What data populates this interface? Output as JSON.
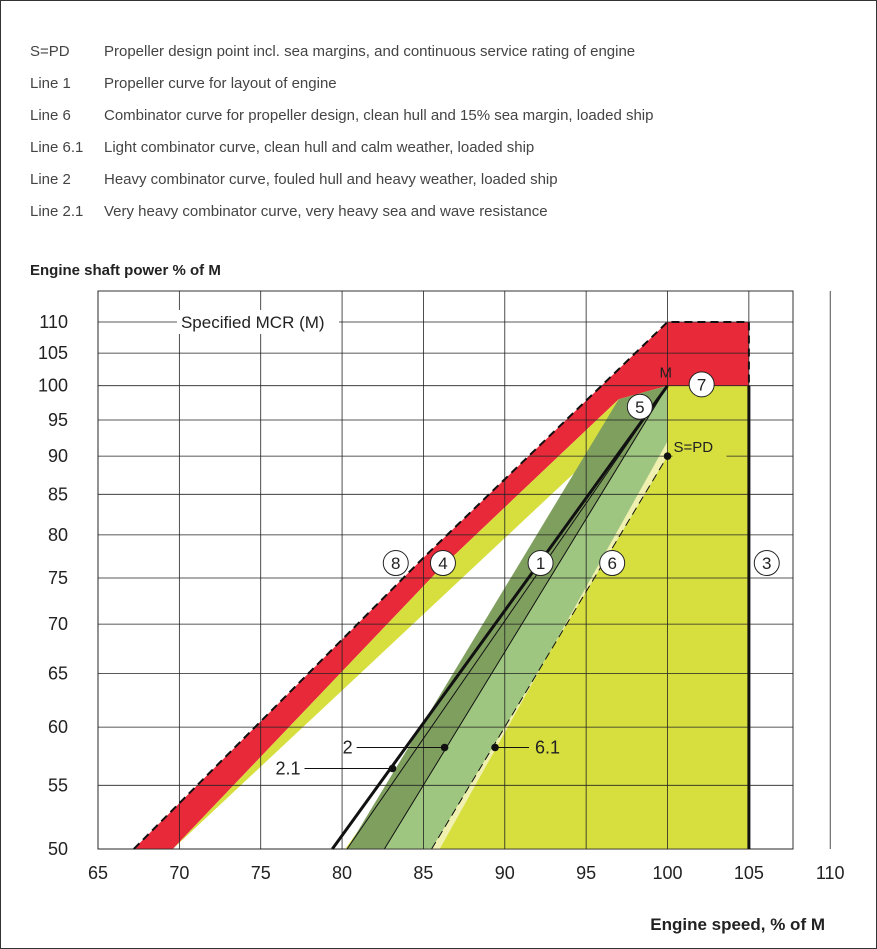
{
  "legend": [
    {
      "key": "S=PD",
      "text": "Propeller design point incl. sea margins, and continuous service rating of engine"
    },
    {
      "key": "Line 1",
      "text": "Propeller curve for layout of engine"
    },
    {
      "key": "Line 6",
      "text": "Combinator curve for propeller design, clean hull and 15% sea margin, loaded ship"
    },
    {
      "key": "Line 6.1",
      "text": "Light combinator curve, clean hull and calm weather, loaded ship"
    },
    {
      "key": "Line 2",
      "text": "Heavy combinator curve, fouled hull and heavy weather, loaded ship"
    },
    {
      "key": "Line 2.1",
      "text": "Very heavy combinator curve, very heavy sea and wave resistance"
    }
  ],
  "chart_data": {
    "type": "area",
    "ylabel": "Engine shaft power % of M",
    "xlabel": "Engine speed, % of M",
    "xlim": [
      65,
      110
    ],
    "ylim": [
      50,
      110
    ],
    "y_scale": "log",
    "x_ticks": [
      65,
      70,
      75,
      80,
      85,
      90,
      95,
      100,
      105,
      110
    ],
    "y_ticks": [
      50,
      55,
      60,
      65,
      70,
      75,
      80,
      85,
      90,
      95,
      100,
      105,
      110
    ],
    "grid": true,
    "colors": {
      "overload_band": "#e8293a",
      "operating_area": "#d7df3f",
      "heavy_band": "#7f9f5f",
      "light_band": "#9fc680",
      "edge": "#f0f0b0",
      "line": "#111111"
    },
    "regions": [
      {
        "name": "red",
        "points": [
          [
            67.2,
            50
          ],
          [
            69.6,
            50
          ],
          [
            86,
            76
          ],
          [
            97,
            98
          ],
          [
            100,
            100
          ],
          [
            105,
            100
          ],
          [
            105,
            110
          ],
          [
            100,
            110
          ],
          [
            85,
            77.3
          ]
        ]
      },
      {
        "name": "yellow",
        "points": [
          [
            69.6,
            50
          ],
          [
            80.2,
            50
          ],
          [
            100,
            100
          ],
          [
            105,
            100
          ],
          [
            105,
            50
          ],
          [
            100,
            50
          ],
          [
            69.6,
            50
          ],
          [
            86,
            76
          ],
          [
            97,
            98
          ],
          [
            100,
            100
          ]
        ]
      },
      {
        "name": "dark_green",
        "points": [
          [
            80.3,
            50
          ],
          [
            82.6,
            50
          ],
          [
            100,
            100
          ],
          [
            97,
            98
          ]
        ]
      },
      {
        "name": "light_green",
        "points": [
          [
            82.6,
            50
          ],
          [
            85.5,
            50
          ],
          [
            100,
            90
          ],
          [
            100,
            100
          ]
        ]
      },
      {
        "name": "cream",
        "points": [
          [
            85.5,
            50
          ],
          [
            86,
            50
          ],
          [
            100,
            92
          ],
          [
            100,
            90
          ]
        ]
      }
    ],
    "lines": [
      {
        "name": "1",
        "points": [
          [
            79.4,
            50
          ],
          [
            100,
            100
          ]
        ],
        "width": 3
      },
      {
        "name": "2",
        "points": [
          [
            80.3,
            50
          ],
          [
            100,
            100
          ]
        ],
        "width": 1
      },
      {
        "name": "6",
        "points": [
          [
            85.5,
            50
          ],
          [
            100,
            90
          ]
        ],
        "width": 1,
        "dash": true
      },
      {
        "name": "6.1",
        "points": [
          [
            82.6,
            50
          ],
          [
            100,
            100
          ]
        ],
        "width": 1
      },
      {
        "name": "8",
        "points": [
          [
            67.2,
            50
          ],
          [
            85,
            77.3
          ],
          [
            100,
            110
          ],
          [
            105,
            110
          ],
          [
            105,
            100
          ]
        ],
        "width": 2,
        "dash": true
      },
      {
        "name": "3",
        "points": [
          [
            105,
            50
          ],
          [
            105,
            100
          ]
        ],
        "width": 3
      }
    ],
    "points": [
      {
        "label": "M",
        "x": 100,
        "y": 100
      },
      {
        "label": "S=PD",
        "x": 100,
        "y": 90
      },
      {
        "label": "2",
        "x": 86.3,
        "y": 58.2
      },
      {
        "label": "2.1",
        "x": 83.1,
        "y": 56.4
      },
      {
        "label": "6.1",
        "x": 89.4,
        "y": 58.2
      }
    ],
    "circle_labels": [
      {
        "label": "8",
        "x": 83.3,
        "y": 76.7
      },
      {
        "label": "4",
        "x": 86.2,
        "y": 76.7
      },
      {
        "label": "1",
        "x": 92.2,
        "y": 76.7
      },
      {
        "label": "6",
        "x": 96.6,
        "y": 76.7
      },
      {
        "label": "3",
        "x": 106.1,
        "y": 76.7
      },
      {
        "label": "5",
        "x": 98.3,
        "y": 96.9
      },
      {
        "label": "7",
        "x": 102.1,
        "y": 100.2
      }
    ],
    "annotations": [
      {
        "text": "Specified MCR (M)",
        "x": 70.1,
        "y": 110
      }
    ]
  }
}
